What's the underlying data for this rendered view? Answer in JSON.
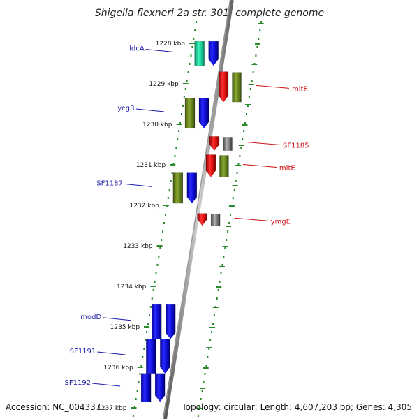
{
  "title": "Shigella flexneri 2a str. 301, complete genome",
  "footer": {
    "accession": "Accession: NC_004337",
    "summary": "Topology: circular; Length: 4,607,203 bp; Genes: 4,305"
  },
  "colors": {
    "forward_label": "#1a1aaa",
    "reverse_label": "#cc1111",
    "ruler_dots": "#2a8a2a",
    "blue_gene": "#1414e0",
    "green_gene": "#6b8a1e",
    "cyan_gene": "#22d6a0",
    "red_gene": "#e01010",
    "gray_gene": "#707070",
    "backbone": "#8a8a8a"
  },
  "ruler": {
    "ticks": [
      {
        "label": "1228 kbp",
        "kbp": 1228
      },
      {
        "label": "1229 kbp",
        "kbp": 1229
      },
      {
        "label": "1230 kbp",
        "kbp": 1230
      },
      {
        "label": "1231 kbp",
        "kbp": 1231
      },
      {
        "label": "1232 kbp",
        "kbp": 1232
      },
      {
        "label": "1233 kbp",
        "kbp": 1233
      },
      {
        "label": "1234 kbp",
        "kbp": 1234
      },
      {
        "label": "1235 kbp",
        "kbp": 1235
      },
      {
        "label": "1236 kbp",
        "kbp": 1236
      },
      {
        "label": "1237 kbp",
        "kbp": 1237
      }
    ]
  },
  "forward_genes": [
    {
      "name": "ldcA",
      "color": "cyan_gene",
      "start_kbp": 1227.95,
      "end_kbp": 1228.55
    },
    {
      "name": "ycgR",
      "color": "green_gene",
      "start_kbp": 1229.35,
      "end_kbp": 1230.1
    },
    {
      "name": "SF1187",
      "color": "green_gene",
      "start_kbp": 1231.2,
      "end_kbp": 1231.95
    },
    {
      "name": "modD",
      "color": "blue_gene",
      "start_kbp": 1234.45,
      "end_kbp": 1235.3
    },
    {
      "name": "SF1191",
      "color": "blue_gene",
      "start_kbp": 1235.3,
      "end_kbp": 1236.15
    },
    {
      "name": "SF1192",
      "color": "blue_gene",
      "start_kbp": 1236.15,
      "end_kbp": 1236.85
    }
  ],
  "reverse_genes": [
    {
      "name": "mltE",
      "color": "red_gene",
      "start_kbp": 1228.7,
      "end_kbp": 1229.45
    },
    {
      "name": "SF1185",
      "color": "red_gene",
      "start_kbp": 1230.3,
      "end_kbp": 1230.65
    },
    {
      "name": "mltE",
      "color": "red_gene",
      "start_kbp": 1230.75,
      "end_kbp": 1231.3
    },
    {
      "name": "ymgE",
      "color": "red_gene",
      "start_kbp": 1232.2,
      "end_kbp": 1232.5
    }
  ]
}
